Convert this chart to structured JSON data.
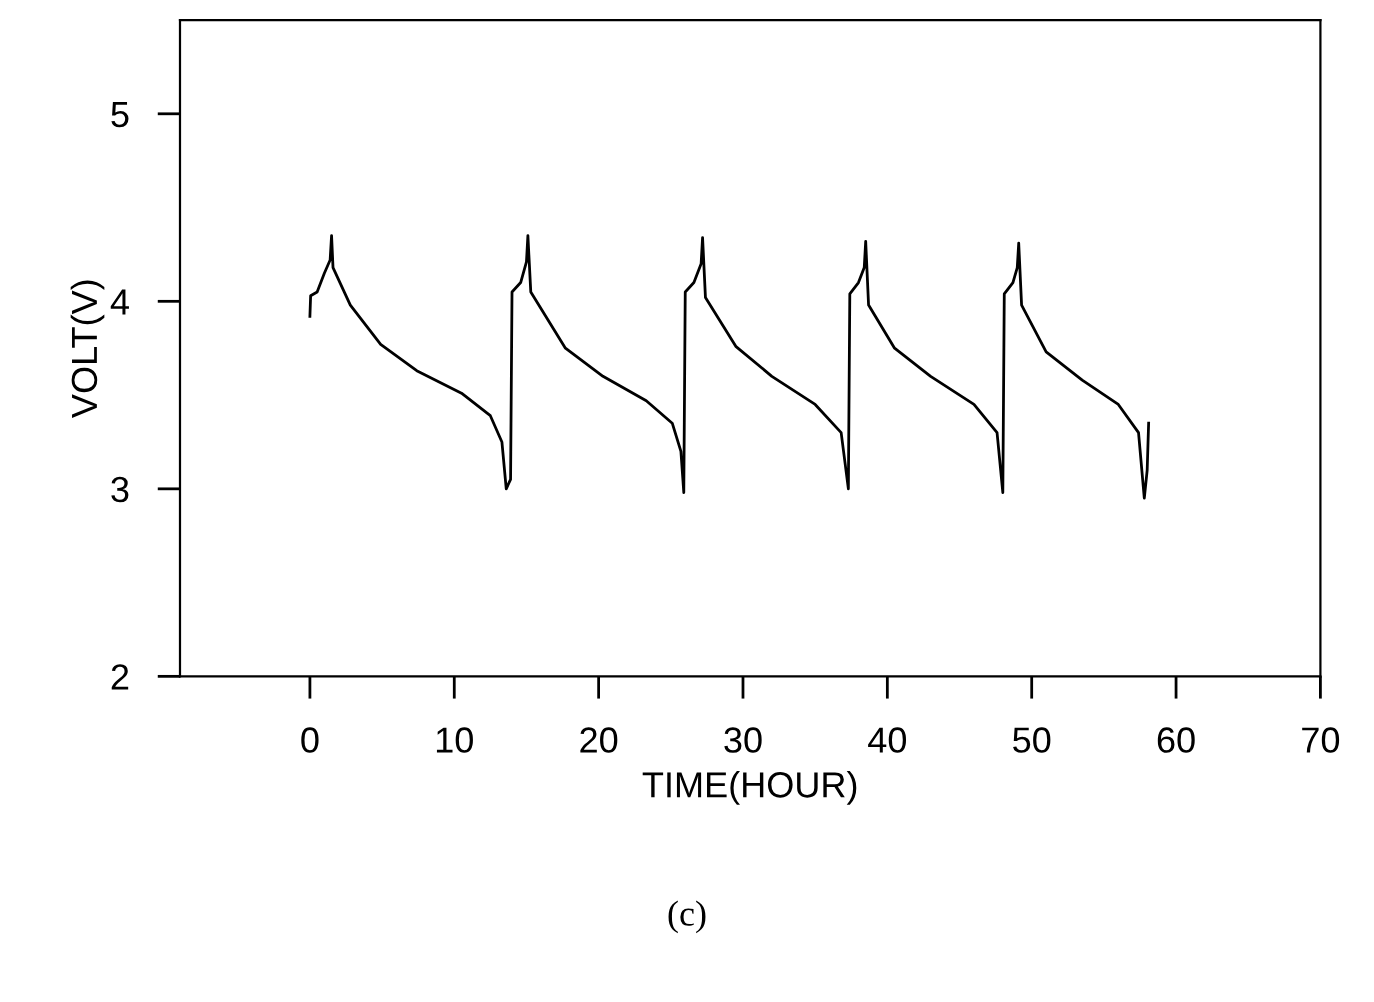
{
  "chart_data": {
    "type": "line",
    "xlabel": "TIME(HOUR)",
    "ylabel": "VOLT(V)",
    "annotations": [
      "(c)"
    ],
    "x": [
      0,
      0.05,
      0.5,
      1.0,
      1.4,
      1.5,
      1.6,
      2.8,
      4.9,
      7.4,
      10.5,
      12.5,
      13.3,
      13.6,
      13.9,
      14.0,
      14.6,
      15.0,
      15.1,
      15.3,
      17.7,
      20.3,
      23.3,
      25.1,
      25.7,
      25.9,
      26.0,
      26.6,
      27.1,
      27.2,
      27.4,
      29.5,
      32,
      35,
      36.8,
      37.3,
      37.4,
      38.0,
      38.4,
      38.5,
      38.7,
      40.5,
      43,
      46,
      47.6,
      48.0,
      48.1,
      48.7,
      49.0,
      49.1,
      49.3,
      51,
      53.5,
      56,
      57.4,
      57.8,
      58.0,
      58.1
    ],
    "series": [
      {
        "color": "#000000",
        "values": [
          3.92,
          4.03,
          4.05,
          4.15,
          4.22,
          4.35,
          4.18,
          3.98,
          3.77,
          3.63,
          3.51,
          3.39,
          3.25,
          3.0,
          3.05,
          4.05,
          4.1,
          4.21,
          4.35,
          4.05,
          3.75,
          3.6,
          3.47,
          3.35,
          3.2,
          2.98,
          4.05,
          4.1,
          4.2,
          4.34,
          4.02,
          3.76,
          3.6,
          3.45,
          3.3,
          3.0,
          4.04,
          4.1,
          4.18,
          4.32,
          3.98,
          3.75,
          3.6,
          3.45,
          3.3,
          2.98,
          4.04,
          4.1,
          4.18,
          4.31,
          3.98,
          3.73,
          3.58,
          3.45,
          3.3,
          2.95,
          3.1,
          3.35
        ]
      }
    ],
    "xlim": [
      -9,
      70
    ],
    "ylim": [
      2,
      5.5
    ],
    "xticks": [
      0,
      10,
      20,
      30,
      40,
      50,
      60,
      70
    ],
    "yticks": [
      2,
      3,
      4,
      5
    ],
    "grid": false,
    "legend": false,
    "marker": "none",
    "line_style": "solid"
  }
}
